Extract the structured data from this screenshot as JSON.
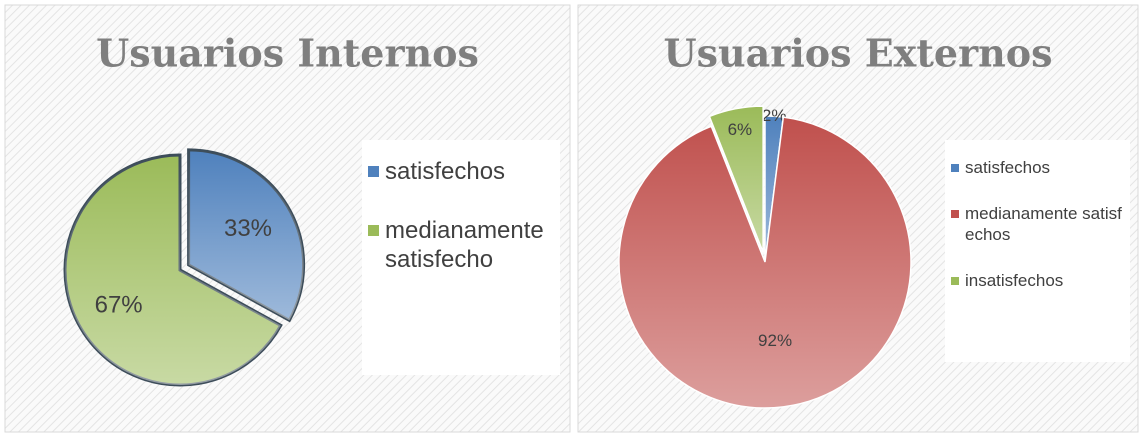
{
  "chart_data": [
    {
      "type": "pie",
      "title": "Usuarios Internos",
      "categories": [
        "satisfechos",
        "medianamente satisfecho"
      ],
      "values": [
        33,
        67
      ],
      "value_labels": [
        "33%",
        "67%"
      ],
      "colors": [
        "#4f81bd",
        "#9bbb59"
      ],
      "legend": "right"
    },
    {
      "type": "pie",
      "title": "Usuarios Externos",
      "categories": [
        "satisfechos",
        "medianamente satisfechos",
        "insatisfechos"
      ],
      "values": [
        2,
        92,
        6
      ],
      "value_labels": [
        "2%",
        "92%",
        "6%"
      ],
      "colors": [
        "#4f81bd",
        "#c0504d",
        "#9bbb59"
      ],
      "legend": "right"
    }
  ]
}
